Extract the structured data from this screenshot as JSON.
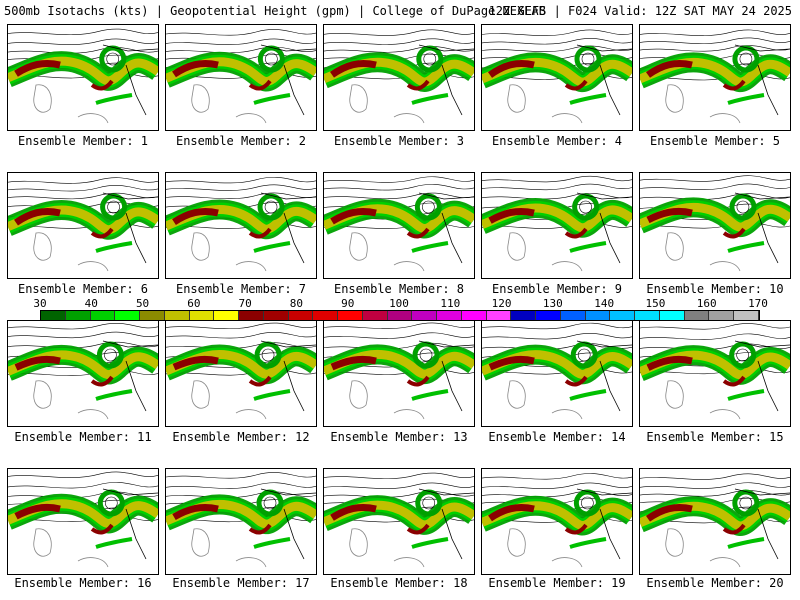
{
  "header": {
    "left": "500mb Isotachs (kts) | Geopotential Height (gpm) | College of DuPage NEXLAB",
    "right": "12Z GEFS | F024 Valid: 12Z SAT MAY 24 2025"
  },
  "members": [
    {
      "label": "Ensemble Member: 1"
    },
    {
      "label": "Ensemble Member: 2"
    },
    {
      "label": "Ensemble Member: 3"
    },
    {
      "label": "Ensemble Member: 4"
    },
    {
      "label": "Ensemble Member: 5"
    },
    {
      "label": "Ensemble Member: 6"
    },
    {
      "label": "Ensemble Member: 7"
    },
    {
      "label": "Ensemble Member: 8"
    },
    {
      "label": "Ensemble Member: 9"
    },
    {
      "label": "Ensemble Member: 10"
    },
    {
      "label": "Ensemble Member: 11"
    },
    {
      "label": "Ensemble Member: 12"
    },
    {
      "label": "Ensemble Member: 13"
    },
    {
      "label": "Ensemble Member: 14"
    },
    {
      "label": "Ensemble Member: 15"
    },
    {
      "label": "Ensemble Member: 16"
    },
    {
      "label": "Ensemble Member: 17"
    },
    {
      "label": "Ensemble Member: 18"
    },
    {
      "label": "Ensemble Member: 19"
    },
    {
      "label": "Ensemble Member: 20"
    }
  ],
  "colorbar": {
    "ticks": [
      "30",
      "40",
      "50",
      "60",
      "70",
      "80",
      "90",
      "100",
      "110",
      "120",
      "130",
      "140",
      "150",
      "160",
      "170"
    ],
    "colors": [
      "#006400",
      "#00a000",
      "#00d000",
      "#00ff00",
      "#8b8b00",
      "#c0c000",
      "#e0e000",
      "#ffff00",
      "#8b0000",
      "#a00000",
      "#c80000",
      "#e00000",
      "#ff0000",
      "#c00040",
      "#b00080",
      "#c000c0",
      "#e000e0",
      "#ff00ff",
      "#ff40ff",
      "#0000c0",
      "#0000ff",
      "#0060ff",
      "#0090ff",
      "#00c0ff",
      "#00e0ff",
      "#00ffff",
      "#808080",
      "#a0a0a0",
      "#c0c0c0"
    ]
  }
}
